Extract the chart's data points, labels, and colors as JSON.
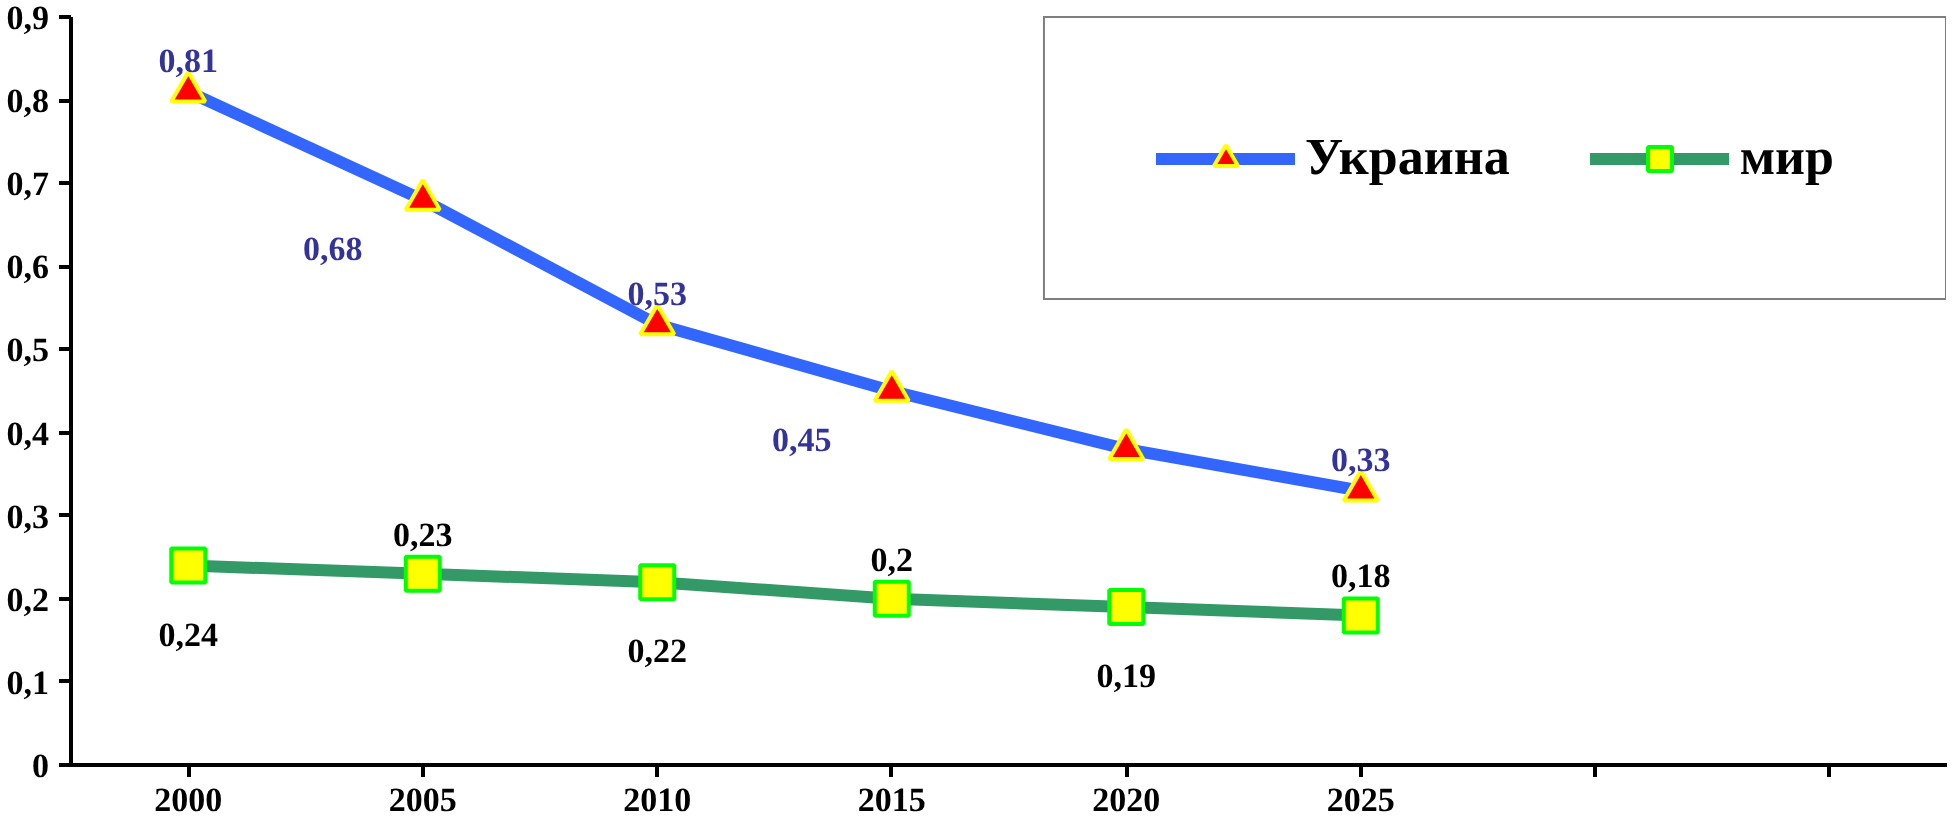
{
  "chart_data": {
    "type": "line",
    "categories": [
      "2000",
      "2005",
      "2010",
      "2015",
      "2020",
      "2025",
      null,
      null
    ],
    "series": [
      {
        "name": "Украина",
        "color": "#3366ff",
        "marker": "triangle",
        "values": [
          0.81,
          0.68,
          0.53,
          0.45,
          0.38,
          0.33,
          null,
          null
        ],
        "value_labels": [
          "0,81",
          "0,68",
          "0,53",
          "0,45",
          null,
          "0,33",
          null,
          null
        ]
      },
      {
        "name": "мир",
        "color": "#339966",
        "marker": "square",
        "values": [
          0.24,
          0.23,
          0.22,
          0.2,
          0.19,
          0.18,
          null,
          null
        ],
        "value_labels": [
          "0,24",
          "0,23",
          "0,22",
          "0,2",
          "0,19",
          "0,18",
          null,
          null
        ]
      }
    ],
    "ylim": [
      0,
      0.9
    ],
    "yticks": [
      {
        "value": 0,
        "label": "0"
      },
      {
        "value": 0.1,
        "label": "0,1"
      },
      {
        "value": 0.2,
        "label": "0,2"
      },
      {
        "value": 0.3,
        "label": "0,3"
      },
      {
        "value": 0.4,
        "label": "0,4"
      },
      {
        "value": 0.5,
        "label": "0,5"
      },
      {
        "value": 0.6,
        "label": "0,6"
      },
      {
        "value": 0.7,
        "label": "0,7"
      },
      {
        "value": 0.8,
        "label": "0,8"
      },
      {
        "value": 0.9,
        "label": "0,9"
      }
    ],
    "grid": false,
    "legend": "top right",
    "line_style": "solid"
  }
}
